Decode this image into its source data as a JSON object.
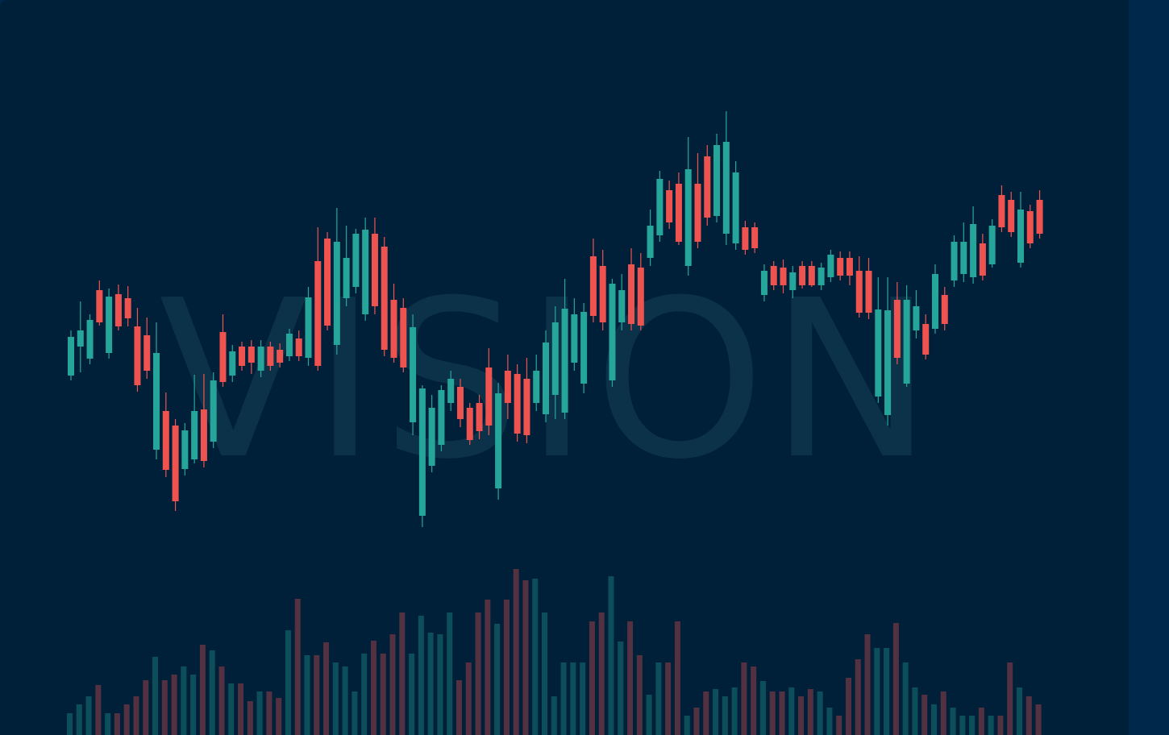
{
  "chart_data": {
    "type": "candlestick",
    "watermark": "VISION",
    "up_color": "#26a69a",
    "down_color": "#ef5350",
    "volume_opacity": 0.35,
    "ylim": [
      0,
      700
    ],
    "volume_ylim": [
      0,
      300
    ],
    "open": [
      234,
      270,
      255,
      340,
      262,
      335,
      330,
      295,
      284,
      142,
      190,
      172,
      118,
      130,
      192,
      152,
      288,
      234,
      270,
      270,
      240,
      270,
      266,
      258,
      280,
      256,
      376,
      404,
      272,
      330,
      344,
      310,
      410,
      394,
      328,
      318,
      176,
      60,
      122,
      148,
      200,
      220,
      194,
      200,
      244,
      94,
      240,
      236,
      230,
      200,
      186,
      210,
      188,
      250,
      224,
      382,
      370,
      228,
      300,
      372,
      368,
      380,
      408,
      464,
      472,
      370,
      472,
      506,
      432,
      410,
      398,
      418,
      418,
      334,
      370,
      368,
      340,
      370,
      370,
      346,
      356,
      380,
      380,
      364,
      364,
      208,
      185,
      328,
      224,
      290,
      298,
      292,
      334,
      352,
      360,
      356,
      398,
      372,
      458,
      452,
      374,
      438,
      452
    ],
    "high": [
      290,
      326,
      310,
      352,
      342,
      347,
      345,
      318,
      306,
      300,
      213,
      180,
      175,
      235,
      236,
      238,
      310,
      272,
      276,
      278,
      278,
      276,
      274,
      292,
      290,
      344,
      418,
      412,
      442,
      420,
      416,
      430,
      430,
      406,
      348,
      330,
      310,
      222,
      210,
      222,
      240,
      230,
      200,
      210,
      268,
      225,
      260,
      248,
      256,
      260,
      290,
      320,
      354,
      330,
      324,
      404,
      390,
      354,
      360,
      392,
      386,
      440,
      488,
      476,
      486,
      530,
      510,
      520,
      534,
      562,
      500,
      426,
      424,
      372,
      376,
      378,
      370,
      376,
      376,
      374,
      390,
      388,
      388,
      382,
      380,
      356,
      356,
      350,
      346,
      340,
      310,
      372,
      344,
      408,
      424,
      444,
      410,
      428,
      470,
      462,
      462,
      446,
      464
    ],
    "low": [
      228,
      238,
      248,
      296,
      255,
      290,
      295,
      214,
      230,
      130,
      108,
      66,
      110,
      125,
      120,
      144,
      220,
      226,
      240,
      236,
      232,
      240,
      244,
      252,
      252,
      246,
      240,
      290,
      260,
      320,
      336,
      302,
      310,
      258,
      250,
      238,
      160,
      46,
      114,
      140,
      190,
      170,
      148,
      155,
      160,
      80,
      180,
      152,
      150,
      190,
      176,
      180,
      180,
      240,
      212,
      300,
      290,
      220,
      290,
      290,
      290,
      370,
      400,
      416,
      396,
      358,
      392,
      420,
      424,
      396,
      390,
      384,
      386,
      326,
      340,
      336,
      330,
      342,
      344,
      340,
      350,
      352,
      346,
      306,
      304,
      200,
      172,
      248,
      220,
      280,
      254,
      286,
      290,
      344,
      350,
      348,
      352,
      368,
      412,
      406,
      368,
      392,
      404
    ],
    "close": [
      282,
      290,
      303,
      300,
      332,
      295,
      305,
      222,
      240,
      262,
      117,
      78,
      166,
      190,
      128,
      228,
      226,
      264,
      246,
      250,
      270,
      246,
      250,
      286,
      258,
      331,
      246,
      296,
      400,
      380,
      410,
      415,
      320,
      266,
      256,
      244,
      294,
      218,
      194,
      216,
      230,
      180,
      154,
      165,
      172,
      212,
      200,
      162,
      160,
      240,
      275,
      300,
      317,
      310,
      313,
      308,
      300,
      348,
      340,
      298,
      296,
      420,
      478,
      424,
      400,
      490,
      400,
      430,
      520,
      524,
      486,
      390,
      392,
      364,
      346,
      346,
      362,
      346,
      346,
      368,
      384,
      358,
      358,
      312,
      312,
      316,
      315,
      256,
      328,
      320,
      260,
      360,
      298,
      400,
      400,
      422,
      358,
      420,
      418,
      412,
      440,
      398,
      410
    ],
    "volume": [
      27,
      38,
      48,
      62,
      27,
      27,
      38,
      48,
      68,
      97,
      68,
      75,
      85,
      75,
      112,
      105,
      85,
      64,
      64,
      42,
      54,
      54,
      46,
      130,
      169,
      99,
      99,
      115,
      90,
      85,
      54,
      101,
      117,
      101,
      125,
      152,
      101,
      148,
      127,
      125,
      152,
      68,
      90,
      152,
      168,
      138,
      168,
      206,
      192,
      194,
      152,
      48,
      90,
      90,
      90,
      141,
      152,
      197,
      116,
      141,
      99,
      50,
      90,
      90,
      141,
      24,
      34,
      54,
      57,
      48,
      59,
      90,
      85,
      67,
      54,
      54,
      59,
      48,
      57,
      54,
      34,
      24,
      71,
      94,
      125,
      108,
      108,
      139,
      90,
      59,
      50,
      38,
      54,
      34,
      24,
      24,
      34,
      24,
      24,
      90,
      59,
      48,
      38
    ]
  }
}
